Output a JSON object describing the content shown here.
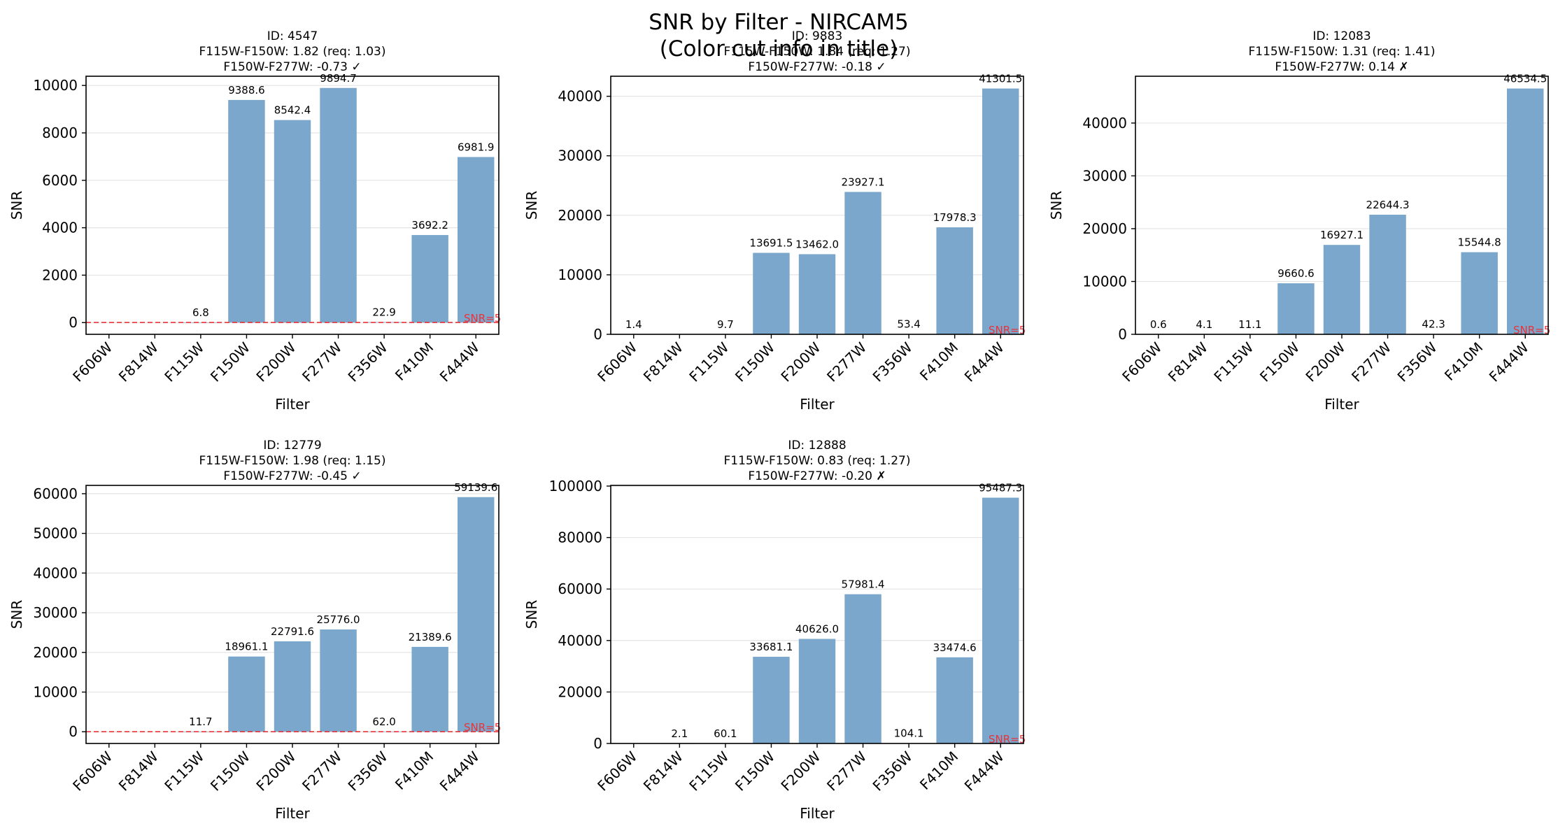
{
  "figure": {
    "title_lines": [
      "SNR by Filter - NIRCAM5",
      "(Color cut info in title)"
    ],
    "threshold_label": "SNR=5",
    "bar_color": "#7ba7cc",
    "threshold_color": "#e8333a"
  },
  "chart_data": [
    {
      "type": "bar",
      "title_lines": [
        "ID: 4547",
        "F115W-F150W: 1.82 (req: 1.03)",
        "F150W-F277W: -0.73 ✓"
      ],
      "xlabel": "Filter",
      "ylabel": "SNR",
      "categories": [
        "F606W",
        "F814W",
        "F115W",
        "F150W",
        "F200W",
        "F277W",
        "F356W",
        "F410M",
        "F444W"
      ],
      "values": [
        null,
        null,
        6.8,
        9388.6,
        8542.4,
        9894.7,
        22.9,
        3692.2,
        6981.9
      ],
      "value_labels": [
        "",
        "",
        "6.8",
        "9388.6",
        "8542.4",
        "9894.7",
        "22.9",
        "3692.2",
        "6981.9"
      ],
      "ylim": [
        -494.7,
        10389.4
      ],
      "yticks": [
        0,
        2000,
        4000,
        6000,
        8000,
        10000
      ],
      "threshold": 5,
      "threshold_line": true,
      "grid": "y"
    },
    {
      "type": "bar",
      "title_lines": [
        "ID: 9883",
        "F115W-F150W: 1.84 (req: 1.27)",
        "F150W-F277W: -0.18 ✓"
      ],
      "xlabel": "Filter",
      "ylabel": "SNR",
      "categories": [
        "F606W",
        "F814W",
        "F115W",
        "F150W",
        "F200W",
        "F277W",
        "F356W",
        "F410M",
        "F444W"
      ],
      "values": [
        1.4,
        null,
        9.7,
        13691.5,
        13462.0,
        23927.1,
        53.4,
        17978.3,
        41301.5
      ],
      "value_labels": [
        "1.4",
        "",
        "9.7",
        "13691.5",
        "13462.0",
        "23927.1",
        "53.4",
        "17978.3",
        "41301.5"
      ],
      "ylim": [
        0,
        43366.6
      ],
      "yticks": [
        0,
        10000,
        20000,
        30000,
        40000
      ],
      "threshold": 5,
      "threshold_line": false,
      "grid": "y"
    },
    {
      "type": "bar",
      "title_lines": [
        "ID: 12083",
        "F115W-F150W: 1.31 (req: 1.41)",
        "F150W-F277W: 0.14 ✗"
      ],
      "xlabel": "Filter",
      "ylabel": "SNR",
      "categories": [
        "F606W",
        "F814W",
        "F115W",
        "F150W",
        "F200W",
        "F277W",
        "F356W",
        "F410M",
        "F444W"
      ],
      "values": [
        0.6,
        4.1,
        11.1,
        9660.6,
        16927.1,
        22644.3,
        42.3,
        15544.8,
        46534.5
      ],
      "value_labels": [
        "0.6",
        "4.1",
        "11.1",
        "9660.6",
        "16927.1",
        "22644.3",
        "42.3",
        "15544.8",
        "46534.5"
      ],
      "ylim": [
        0,
        48861.2
      ],
      "yticks": [
        0,
        10000,
        20000,
        30000,
        40000
      ],
      "threshold": 5,
      "threshold_line": false,
      "grid": "y"
    },
    {
      "type": "bar",
      "title_lines": [
        "ID: 12779",
        "F115W-F150W: 1.98 (req: 1.15)",
        "F150W-F277W: -0.45 ✓"
      ],
      "xlabel": "Filter",
      "ylabel": "SNR",
      "categories": [
        "F606W",
        "F814W",
        "F115W",
        "F150W",
        "F200W",
        "F277W",
        "F356W",
        "F410M",
        "F444W"
      ],
      "values": [
        null,
        null,
        11.7,
        18961.1,
        22791.6,
        25776.0,
        62.0,
        21389.6,
        59139.6
      ],
      "value_labels": [
        "",
        "",
        "11.7",
        "18961.1",
        "22791.6",
        "25776.0",
        "62.0",
        "21389.6",
        "59139.6"
      ],
      "ylim": [
        -2956.7,
        62096.6
      ],
      "yticks": [
        0,
        10000,
        20000,
        30000,
        40000,
        50000,
        60000
      ],
      "threshold": 5,
      "threshold_line": true,
      "grid": "y"
    },
    {
      "type": "bar",
      "title_lines": [
        "ID: 12888",
        "F115W-F150W: 0.83 (req: 1.27)",
        "F150W-F277W: -0.20 ✗"
      ],
      "xlabel": "Filter",
      "ylabel": "SNR",
      "categories": [
        "F606W",
        "F814W",
        "F115W",
        "F150W",
        "F200W",
        "F277W",
        "F356W",
        "F410M",
        "F444W"
      ],
      "values": [
        null,
        2.1,
        60.1,
        33681.1,
        40626.0,
        57981.4,
        104.1,
        33474.6,
        95487.3
      ],
      "value_labels": [
        "",
        "2.1",
        "60.1",
        "33681.1",
        "40626.0",
        "57981.4",
        "104.1",
        "33474.6",
        "95487.3"
      ],
      "ylim": [
        0,
        100261.7
      ],
      "yticks": [
        0,
        20000,
        40000,
        60000,
        80000,
        100000
      ],
      "threshold": 5,
      "threshold_line": false,
      "grid": "y"
    }
  ]
}
